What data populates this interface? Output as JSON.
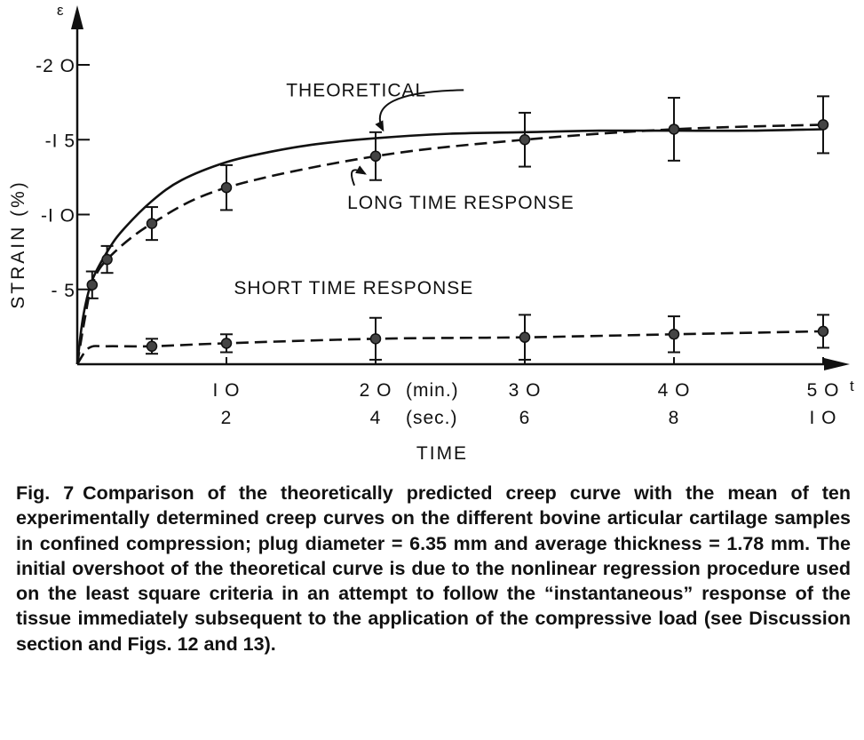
{
  "chart_data": {
    "type": "line",
    "y_axis_symbol": "ε",
    "x_axis_symbol": "t",
    "ylabel": "STRAIN (%)",
    "xlabel": "TIME",
    "x_unit_rows": [
      "(min.)",
      "(sec.)"
    ],
    "y_ticks": [
      "- 5",
      "-I O",
      "-I 5",
      "-2 O"
    ],
    "y_tick_values": [
      5,
      10,
      15,
      20
    ],
    "x_ticks_min": [
      "I O",
      "2 O",
      "3 O",
      "4 O",
      "5 O"
    ],
    "x_ticks_sec": [
      "2",
      "4",
      "6",
      "8",
      "I O"
    ],
    "x_tick_values": [
      10,
      20,
      30,
      40,
      50
    ],
    "xlim": [
      0,
      52
    ],
    "ylim": [
      0,
      24
    ],
    "annotations": [
      {
        "text": "THEORETICAL",
        "x": 14,
        "y": 17.9,
        "target": [
          20.5,
          15.4
        ]
      },
      {
        "text": "LONG TIME RESPONSE",
        "x": 18.1,
        "y": 10.4,
        "target": [
          19.3,
          13.2
        ]
      },
      {
        "text": "SHORT TIME RESPONSE",
        "x": 10.5,
        "y": 4.7,
        "target": null
      }
    ],
    "series": [
      {
        "style": "solid",
        "x": [
          0,
          0.4,
          1,
          2,
          3,
          5,
          7,
          10,
          13,
          16,
          20,
          25,
          30,
          35,
          40,
          45,
          50
        ],
        "y": [
          0,
          3.2,
          5.6,
          7.5,
          8.9,
          10.9,
          12.3,
          13.5,
          14.2,
          14.7,
          15.1,
          15.4,
          15.5,
          15.6,
          15.6,
          15.6,
          15.7
        ]
      },
      {
        "style": "dashed",
        "x": [
          0,
          0.5,
          1,
          2,
          5,
          10,
          20,
          30,
          40,
          50
        ],
        "y": [
          0,
          3.0,
          5.3,
          7.0,
          9.4,
          11.8,
          13.9,
          15.0,
          15.7,
          16.0
        ],
        "error": [
          0.9,
          0.9,
          0.9,
          0.9,
          1.1,
          1.5,
          1.6,
          1.8,
          2.1,
          1.9
        ],
        "points": [
          1,
          2,
          5,
          10,
          20,
          30,
          40,
          50
        ]
      },
      {
        "style": "dashed",
        "x": [
          0,
          0.8,
          2,
          5,
          10,
          20,
          30,
          40,
          50
        ],
        "y": [
          0,
          1.1,
          1.2,
          1.2,
          1.4,
          1.7,
          1.8,
          2.0,
          2.2
        ],
        "error": [
          0,
          0,
          0,
          0.5,
          0.6,
          1.4,
          1.5,
          1.2,
          1.1
        ],
        "points": [
          5,
          10,
          20,
          30,
          40,
          50
        ]
      }
    ]
  },
  "caption": {
    "label": "Fig. 7",
    "text": "Comparison of the theoretically predicted creep curve with the mean of ten experimentally determined creep curves on the different bovine articular cartilage samples in confined compression; plug diameter = 6.35 mm and average thickness = 1.78 mm. The initial overshoot of the theoretical curve is due to the nonlinear regression procedure used on the least square criteria in an attempt to follow the “instantaneous” response of the tissue immediately subsequent to the application of the compressive load (see Discussion section and Figs. 12 and 13)."
  }
}
